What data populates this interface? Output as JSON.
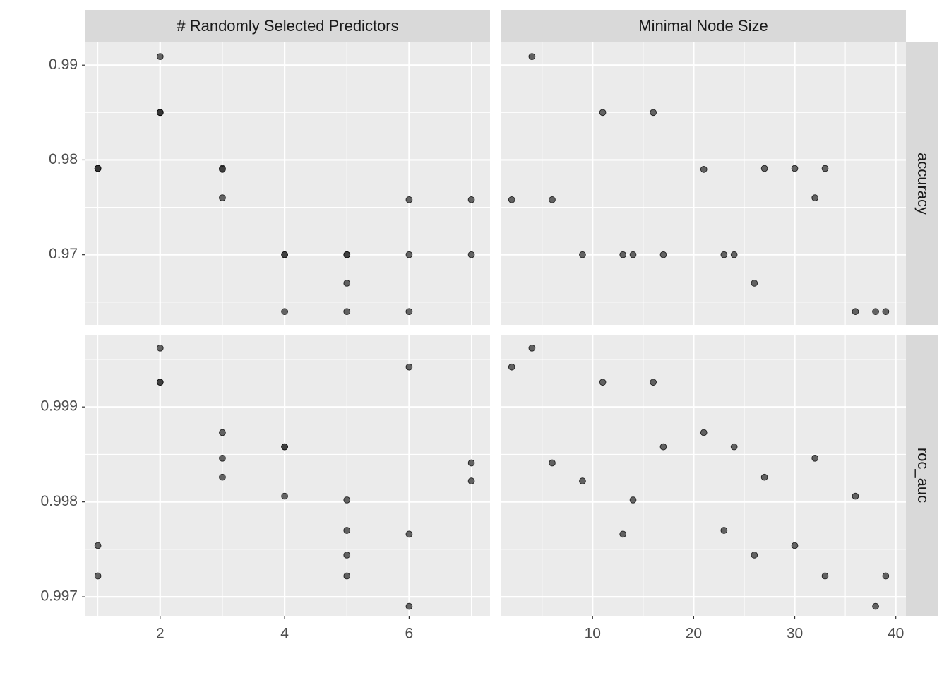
{
  "chart_data": {
    "type": "scatter",
    "facet_columns": [
      "# Randomly Selected Predictors",
      "Minimal Node Size"
    ],
    "facet_rows": [
      "accuracy",
      "roc_auc"
    ],
    "x_ranges": [
      [
        0.8,
        7.3
      ],
      [
        0.9,
        41
      ]
    ],
    "x_ticks": [
      [
        2,
        4,
        6
      ],
      [
        10,
        20,
        30,
        40
      ]
    ],
    "y_ranges": [
      [
        0.9626,
        0.9924
      ],
      [
        0.9968,
        0.99976
      ]
    ],
    "y_ticks": [
      [
        0.97,
        0.98,
        0.99
      ],
      [
        0.997,
        0.998,
        0.999
      ]
    ],
    "grid": true,
    "panels": [
      {
        "column": "# Randomly Selected Predictors",
        "row": "accuracy",
        "points": [
          [
            1,
            0.9791
          ],
          [
            1,
            0.9791
          ],
          [
            1,
            0.9791
          ],
          [
            2,
            0.9909
          ],
          [
            2,
            0.985
          ],
          [
            2,
            0.985
          ],
          [
            2,
            0.985
          ],
          [
            3,
            0.9791
          ],
          [
            3,
            0.979
          ],
          [
            3,
            0.976
          ],
          [
            4,
            0.97
          ],
          [
            4,
            0.97
          ],
          [
            4,
            0.964
          ],
          [
            5,
            0.97
          ],
          [
            5,
            0.97
          ],
          [
            5,
            0.967
          ],
          [
            5,
            0.964
          ],
          [
            6,
            0.9758
          ],
          [
            6,
            0.97
          ],
          [
            6,
            0.964
          ],
          [
            7,
            0.9758
          ],
          [
            7,
            0.97
          ]
        ]
      },
      {
        "column": "Minimal Node Size",
        "row": "accuracy",
        "points": [
          [
            2,
            0.9758
          ],
          [
            4,
            0.9909
          ],
          [
            6,
            0.9758
          ],
          [
            9,
            0.97
          ],
          [
            11,
            0.985
          ],
          [
            13,
            0.97
          ],
          [
            14,
            0.97
          ],
          [
            16,
            0.985
          ],
          [
            17,
            0.97
          ],
          [
            21,
            0.979
          ],
          [
            23,
            0.97
          ],
          [
            24,
            0.97
          ],
          [
            26,
            0.967
          ],
          [
            27,
            0.9791
          ],
          [
            30,
            0.9791
          ],
          [
            32,
            0.976
          ],
          [
            33,
            0.9791
          ],
          [
            36,
            0.964
          ],
          [
            38,
            0.964
          ],
          [
            39,
            0.964
          ]
        ]
      },
      {
        "column": "# Randomly Selected Predictors",
        "row": "roc_auc",
        "points": [
          [
            1,
            0.99754
          ],
          [
            1,
            0.99722
          ],
          [
            2,
            0.99962
          ],
          [
            2,
            0.99926
          ],
          [
            2,
            0.99926
          ],
          [
            3,
            0.99873
          ],
          [
            3,
            0.99846
          ],
          [
            3,
            0.99826
          ],
          [
            4,
            0.99858
          ],
          [
            4,
            0.99858
          ],
          [
            4,
            0.99806
          ],
          [
            5,
            0.99802
          ],
          [
            5,
            0.9977
          ],
          [
            5,
            0.99744
          ],
          [
            5,
            0.99722
          ],
          [
            6,
            0.99942
          ],
          [
            6,
            0.99766
          ],
          [
            6,
            0.9969
          ],
          [
            7,
            0.99841
          ],
          [
            7,
            0.99822
          ]
        ]
      },
      {
        "column": "Minimal Node Size",
        "row": "roc_auc",
        "points": [
          [
            2,
            0.99942
          ],
          [
            4,
            0.99962
          ],
          [
            6,
            0.99841
          ],
          [
            9,
            0.99822
          ],
          [
            11,
            0.99926
          ],
          [
            13,
            0.99766
          ],
          [
            14,
            0.99802
          ],
          [
            16,
            0.99926
          ],
          [
            17,
            0.99858
          ],
          [
            21,
            0.99873
          ],
          [
            23,
            0.9977
          ],
          [
            24,
            0.99858
          ],
          [
            26,
            0.99744
          ],
          [
            27,
            0.99826
          ],
          [
            30,
            0.99754
          ],
          [
            32,
            0.99846
          ],
          [
            33,
            0.99722
          ],
          [
            36,
            0.99806
          ],
          [
            38,
            0.9969
          ],
          [
            39,
            0.99722
          ]
        ]
      }
    ]
  },
  "colors": {
    "panel_background": "#ebebeb",
    "strip_background": "#d9d9d9",
    "grid_line": "#ffffff",
    "point_fill": "#333333",
    "point_stroke": "#000000",
    "tick_text": "#4d4d4d",
    "strip_text": "#1a1a1a"
  }
}
